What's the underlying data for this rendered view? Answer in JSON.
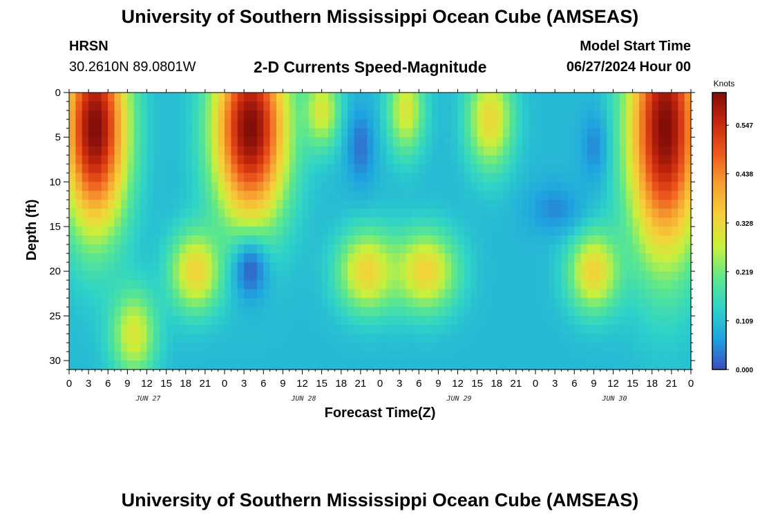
{
  "header": {
    "title": "University of Southern Mississippi Ocean Cube (AMSEAS)",
    "station": "HRSN",
    "coords": "30.2610N  89.0801W",
    "subtitle": "2-D Currents Speed-Magnitude",
    "model_label": "Model Start Time",
    "model_value": "06/27/2024 Hour 00"
  },
  "footer": {
    "title": "University of Southern Mississippi Ocean Cube (AMSEAS)"
  },
  "colors": {
    "scale": [
      "#3b4cc0",
      "#1fa3e0",
      "#2fd3c8",
      "#5fe88a",
      "#c8f03c",
      "#f6d03a",
      "#f5a130",
      "#ee5b1c",
      "#c8280e",
      "#7e0c08"
    ]
  },
  "chart_data": {
    "type": "heatmap",
    "title": "2-D Currents Speed-Magnitude",
    "xlabel": "Forecast Time(Z)",
    "ylabel": "Depth (ft)",
    "xlim": [
      0,
      96
    ],
    "ylim": [
      0,
      31
    ],
    "y_inverted": true,
    "x_tick_labels": [
      "0",
      "3",
      "6",
      "9",
      "12",
      "15",
      "18",
      "21",
      "0",
      "3",
      "6",
      "9",
      "12",
      "15",
      "18",
      "21",
      "0",
      "3",
      "6",
      "9",
      "12",
      "15",
      "18",
      "21",
      "0",
      "3",
      "6",
      "9",
      "12",
      "15",
      "18",
      "21",
      "0"
    ],
    "x_tick_hours": [
      0,
      3,
      6,
      9,
      12,
      15,
      18,
      21,
      24,
      27,
      30,
      33,
      36,
      39,
      42,
      45,
      48,
      51,
      54,
      57,
      60,
      63,
      66,
      69,
      72,
      75,
      78,
      81,
      84,
      87,
      90,
      93,
      96
    ],
    "day_labels": [
      {
        "label": "JUN 27",
        "hour": 12
      },
      {
        "label": "JUN 28",
        "hour": 36
      },
      {
        "label": "JUN 29",
        "hour": 60
      },
      {
        "label": "JUN 30",
        "hour": 84
      }
    ],
    "y_ticks": [
      0,
      5,
      10,
      15,
      20,
      25,
      30
    ],
    "colorbar": {
      "units": "Knots",
      "min": 0.0,
      "max": 0.62,
      "tick_values": [
        0.0,
        0.109,
        0.219,
        0.328,
        0.438,
        0.547
      ],
      "tick_labels": [
        "0.000",
        "0.109",
        "0.219",
        "0.328",
        "0.438",
        "0.547"
      ]
    },
    "features": [
      {
        "desc": "surface jet",
        "hour": 4,
        "depth": 4,
        "sx": 3.5,
        "sy": 8,
        "speed": 0.62
      },
      {
        "desc": "surface jet",
        "hour": 28,
        "depth": 4,
        "sx": 4,
        "sy": 7.5,
        "speed": 0.62
      },
      {
        "desc": "surface jet",
        "hour": 92,
        "depth": 4,
        "sx": 4,
        "sy": 10,
        "speed": 0.62
      },
      {
        "desc": "surface core",
        "hour": 39,
        "depth": 2,
        "sx": 2,
        "sy": 3,
        "speed": 0.3
      },
      {
        "desc": "surface core",
        "hour": 52,
        "depth": 2,
        "sx": 2,
        "sy": 3.5,
        "speed": 0.3
      },
      {
        "desc": "surface core",
        "hour": 65,
        "depth": 3,
        "sx": 2.5,
        "sy": 4,
        "speed": 0.33
      },
      {
        "desc": "mid-depth core",
        "hour": 19.5,
        "depth": 20,
        "sx": 2.8,
        "sy": 3.2,
        "speed": 0.34
      },
      {
        "desc": "mid-depth core",
        "hour": 46,
        "depth": 20,
        "sx": 3.2,
        "sy": 3.2,
        "speed": 0.34
      },
      {
        "desc": "mid-depth core",
        "hour": 55,
        "depth": 20,
        "sx": 3.5,
        "sy": 3.2,
        "speed": 0.34
      },
      {
        "desc": "mid-depth core",
        "hour": 81,
        "depth": 20,
        "sx": 2.8,
        "sy": 3.2,
        "speed": 0.34
      },
      {
        "desc": "bottom core",
        "hour": 10,
        "depth": 27,
        "sx": 2.5,
        "sy": 3.5,
        "speed": 0.3
      },
      {
        "desc": "low-speed pocket",
        "hour": 28,
        "depth": 20,
        "sx": 2,
        "sy": 2.5,
        "speed": 0.02
      },
      {
        "desc": "low-speed pocket",
        "hour": 45,
        "depth": 6,
        "sx": 1.5,
        "sy": 3,
        "speed": 0.03
      },
      {
        "desc": "low-speed pocket",
        "hour": 81,
        "depth": 6,
        "sx": 1.5,
        "sy": 3,
        "speed": 0.05
      },
      {
        "desc": "low-speed pocket",
        "hour": 75,
        "depth": 13,
        "sx": 3,
        "sy": 2,
        "speed": 0.05
      }
    ]
  }
}
